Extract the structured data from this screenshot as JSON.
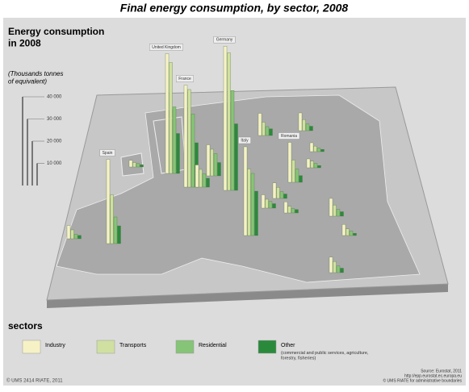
{
  "map": {
    "title": "Final energy consumption, by sector, 2008",
    "legend_title": "Energy consumption in 2008",
    "legend_unit": "(Thousands tonnes of equivalent)",
    "scale_ticks": [
      {
        "value": 40000,
        "label": "40 000"
      },
      {
        "value": 30000,
        "label": "30 000"
      },
      {
        "value": 20000,
        "label": "20 000"
      },
      {
        "value": 10000,
        "label": "10 000"
      }
    ],
    "sectors_title": "sectors",
    "sectors": [
      {
        "name": "Industry",
        "color": "#f6f2c6"
      },
      {
        "name": "Transports",
        "color": "#cfe0a0"
      },
      {
        "name": "Residential",
        "color": "#86c477"
      },
      {
        "name": "Other",
        "color": "#2a8a3c",
        "note": "(commercial and public services, agriculture, forestry, fisheries)"
      }
    ],
    "countries": [
      {
        "label": "United Kingdom",
        "values": [
          54000,
          50000,
          30000,
          18000
        ]
      },
      {
        "label": "France",
        "values": [
          46000,
          44000,
          33000,
          20000
        ]
      },
      {
        "label": "Germany",
        "values": [
          65000,
          62000,
          45000,
          30000
        ]
      },
      {
        "label": "Spain",
        "values": [
          38000,
          22000,
          12000,
          8000
        ]
      },
      {
        "label": "Italy",
        "values": [
          40000,
          30000,
          28000,
          20000
        ]
      },
      {
        "label": "Romania",
        "values": [
          18000,
          10000,
          6000,
          3000
        ]
      },
      {
        "label": null,
        "values": [
          10000,
          6000,
          4000,
          3000
        ]
      },
      {
        "label": null,
        "values": [
          8000,
          5000,
          3000,
          2000
        ]
      },
      {
        "label": null,
        "values": [
          14000,
          12000,
          10000,
          6000
        ]
      },
      {
        "label": null,
        "values": [
          10000,
          8000,
          6000,
          4000
        ]
      },
      {
        "label": null,
        "values": [
          3000,
          2000,
          1500,
          1000
        ]
      },
      {
        "label": null,
        "values": [
          6000,
          4000,
          2000,
          1500
        ]
      },
      {
        "label": null,
        "values": [
          7000,
          5000,
          3000,
          2000
        ]
      },
      {
        "label": null,
        "values": [
          6000,
          4000,
          3000,
          2000
        ]
      },
      {
        "label": null,
        "values": [
          5000,
          3000,
          2000,
          1500
        ]
      },
      {
        "label": null,
        "values": [
          4000,
          2500,
          1500,
          1000
        ]
      },
      {
        "label": null,
        "values": [
          4000,
          3000,
          2000,
          1000
        ]
      },
      {
        "label": null,
        "values": [
          8000,
          5000,
          3000,
          2000
        ]
      },
      {
        "label": null,
        "values": [
          7000,
          5000,
          3000,
          2000
        ]
      },
      {
        "label": null,
        "values": [
          5000,
          3000,
          2000,
          1000
        ]
      }
    ],
    "footer_left": "© UMS 2414 RIATE, 2011",
    "source": [
      "Source: Eurostat, 2011",
      "http://epp.eurostat.ec.europa.eu",
      "© UMS RIATE for administrative boundaries"
    ]
  }
}
